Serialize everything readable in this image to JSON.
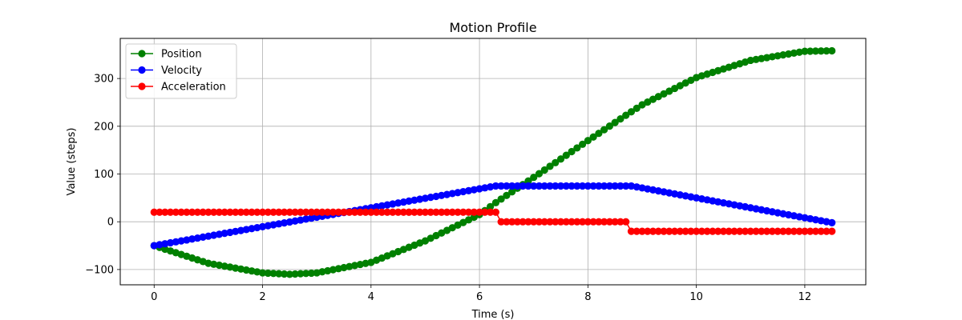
{
  "chart_data": {
    "type": "line",
    "title": "Motion Profile",
    "xlabel": "Time (s)",
    "ylabel": "Value (steps)",
    "xlim": [
      -0.625,
      13.125
    ],
    "ylim": [
      -132,
      384
    ],
    "xticks": [
      0,
      2,
      4,
      6,
      8,
      10,
      12
    ],
    "yticks": [
      -100,
      0,
      100,
      200,
      300
    ],
    "ytick_labels": [
      "−100",
      "0",
      "100",
      "200",
      "300"
    ],
    "grid": true,
    "legend_position": "top-left",
    "t_start": 0,
    "t_end": 12.5,
    "sample_step": 0.1,
    "series": [
      {
        "name": "Position",
        "color": "#008000",
        "marker": "circle",
        "knots": [
          [
            0,
            -50
          ],
          [
            1,
            -87
          ],
          [
            2,
            -107
          ],
          [
            2.5,
            -110
          ],
          [
            3,
            -107
          ],
          [
            4,
            -85
          ],
          [
            5,
            -40
          ],
          [
            6,
            15
          ],
          [
            6.3,
            40
          ],
          [
            7,
            93
          ],
          [
            8,
            170
          ],
          [
            8.7,
            223
          ],
          [
            9,
            245
          ],
          [
            10,
            302
          ],
          [
            11,
            338
          ],
          [
            12,
            357
          ],
          [
            12.5,
            358
          ]
        ]
      },
      {
        "name": "Velocity",
        "color": "#0000ff",
        "marker": "circle",
        "knots": [
          [
            0,
            -50
          ],
          [
            6.3,
            75
          ],
          [
            8.8,
            75
          ],
          [
            12.5,
            -2
          ]
        ]
      },
      {
        "name": "Acceleration",
        "color": "#ff0000",
        "marker": "circle",
        "knots": [
          [
            0,
            20
          ],
          [
            6.3,
            20
          ],
          [
            6.4,
            0
          ],
          [
            8.7,
            0
          ],
          [
            8.8,
            -20
          ],
          [
            12.5,
            -20
          ]
        ]
      }
    ]
  }
}
